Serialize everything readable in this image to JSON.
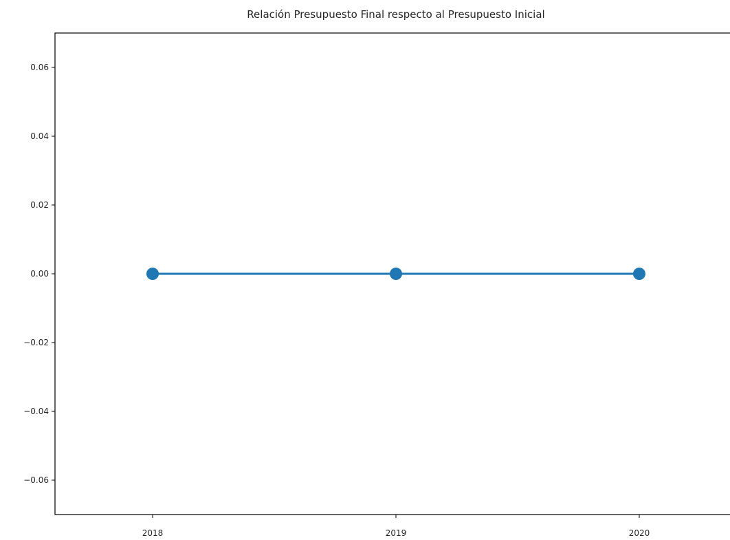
{
  "chart_data": {
    "type": "line",
    "title": "Relación Presupuesto Final respecto al Presupuesto Inicial",
    "xlabel": "",
    "ylabel": "",
    "x": [
      "2018",
      "2019",
      "2020"
    ],
    "series": [
      {
        "values": [
          0.0,
          0.0,
          0.0
        ],
        "color": "#1f77b4",
        "marker": "circle"
      }
    ],
    "ylim": [
      -0.07,
      0.07
    ],
    "yticks": [
      0.06,
      0.04,
      0.02,
      0.0,
      -0.02,
      -0.04,
      -0.06
    ],
    "ytick_labels": [
      "0.06",
      "0.04",
      "0.02",
      "0.00",
      "−0.02",
      "−0.04",
      "−0.06"
    ],
    "grid": false
  }
}
